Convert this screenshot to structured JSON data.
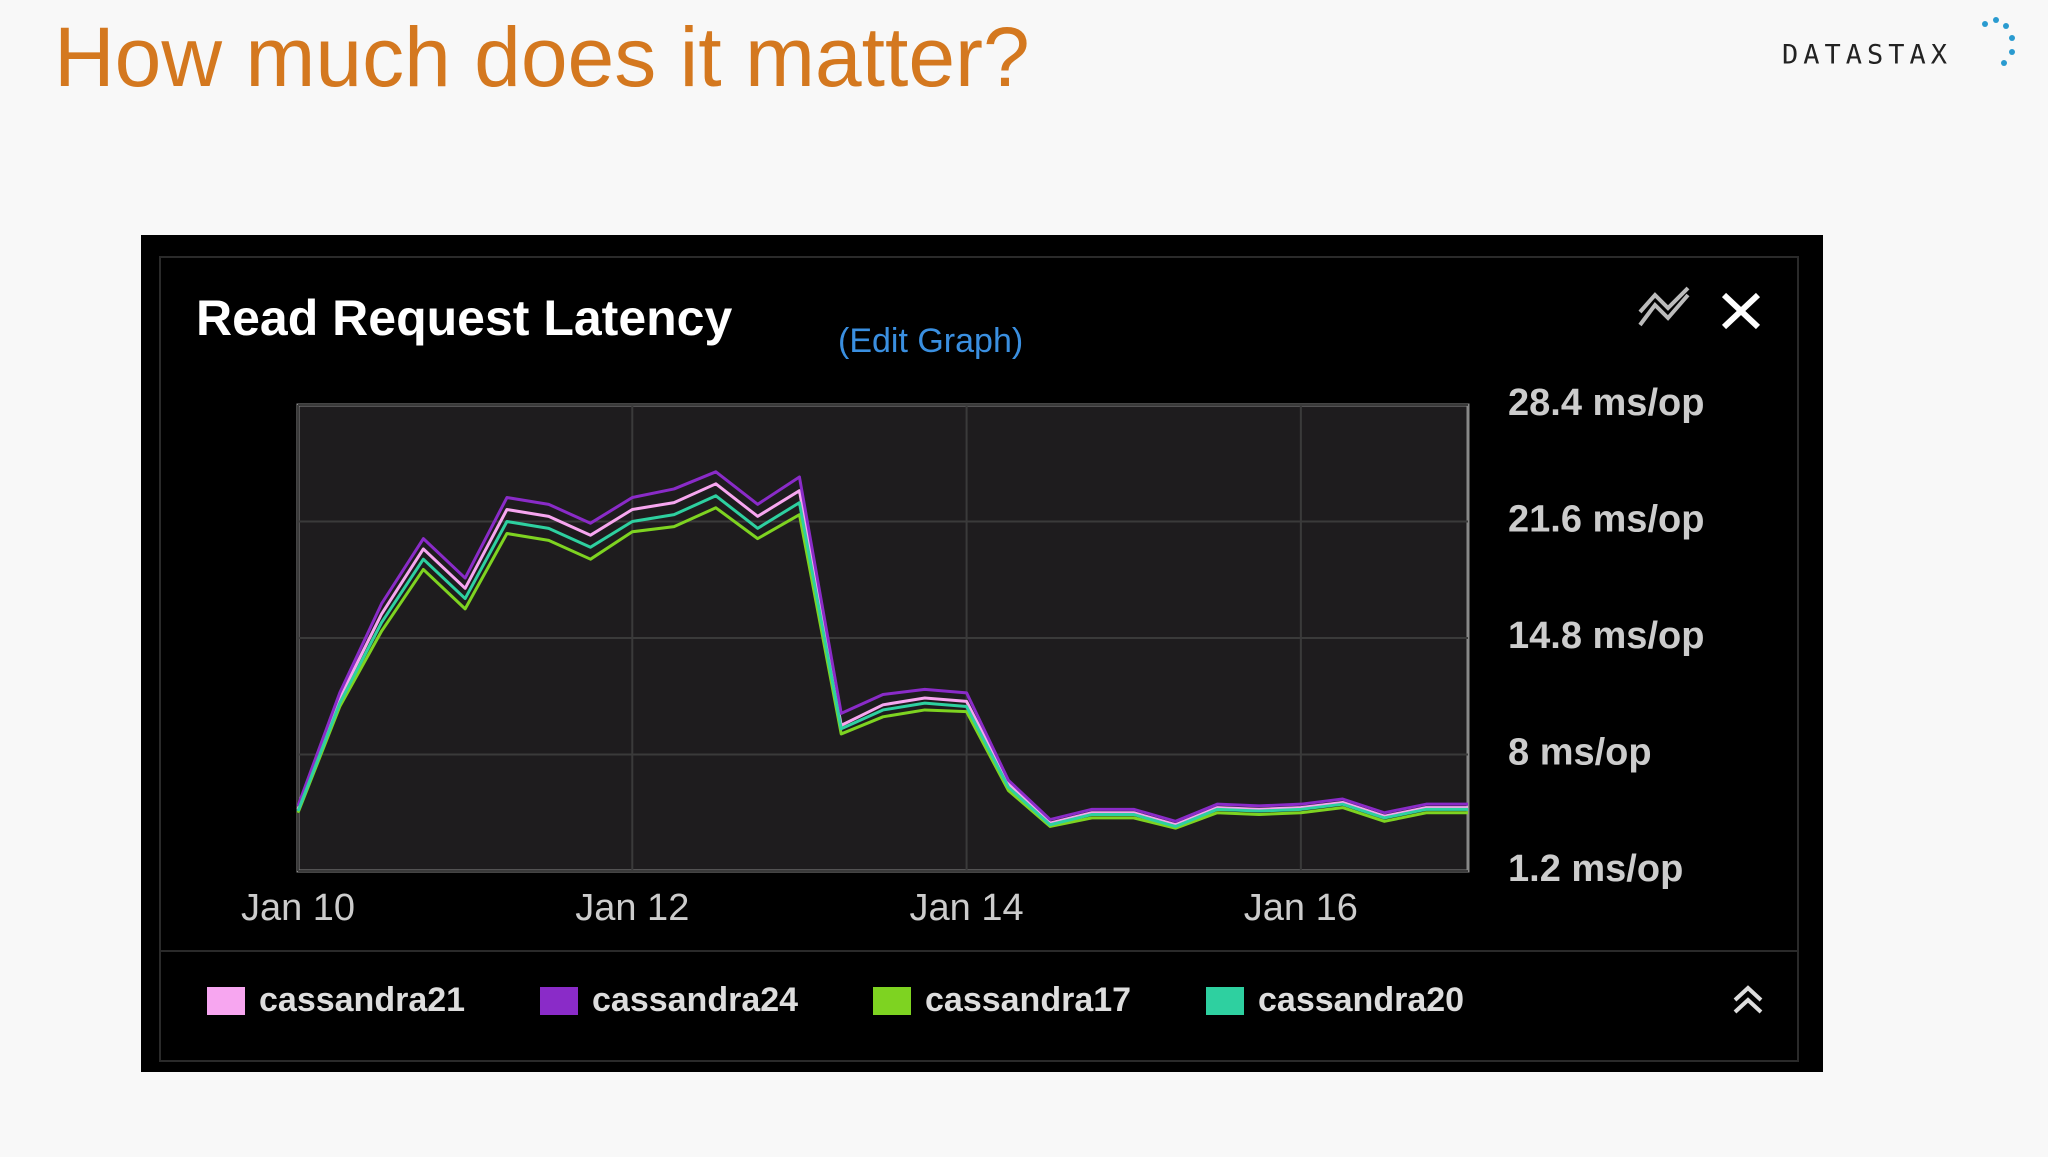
{
  "slide": {
    "title": "How much does it matter?",
    "logo": "DATASTAX"
  },
  "panel": {
    "edit_link": "(Edit Graph)"
  },
  "chart_data": {
    "type": "line",
    "title": "Read Request Latency",
    "x": [
      10,
      10.25,
      10.5,
      10.75,
      11,
      11.25,
      11.5,
      11.75,
      12,
      12.25,
      12.5,
      12.75,
      13,
      13.25,
      13.5,
      13.75,
      14,
      14.25,
      14.5,
      14.75,
      15,
      15.25,
      15.5,
      15.75,
      16,
      16.25,
      16.5,
      16.75,
      17
    ],
    "series": [
      {
        "name": "cassandra21",
        "color": "#f7a6f0",
        "values": [
          4.8,
          11.3,
          16.2,
          20.0,
          17.7,
          22.3,
          21.9,
          20.8,
          22.3,
          22.7,
          23.8,
          21.9,
          23.4,
          9.7,
          10.9,
          11.3,
          11.1,
          6.3,
          4.0,
          4.6,
          4.6,
          3.9,
          4.9,
          4.8,
          4.9,
          5.2,
          4.4,
          4.9,
          4.9
        ]
      },
      {
        "name": "cassandra24",
        "color": "#8a2bc8",
        "values": [
          5.0,
          11.6,
          16.8,
          20.6,
          18.3,
          23.0,
          22.6,
          21.5,
          23.0,
          23.5,
          24.5,
          22.6,
          24.2,
          10.4,
          11.5,
          11.8,
          11.6,
          6.5,
          4.2,
          4.8,
          4.8,
          4.1,
          5.1,
          5.0,
          5.1,
          5.4,
          4.6,
          5.1,
          5.1
        ]
      },
      {
        "name": "cassandra17",
        "color": "#7ed321",
        "values": [
          4.6,
          10.8,
          15.2,
          18.8,
          16.5,
          20.9,
          20.5,
          19.4,
          21.0,
          21.3,
          22.4,
          20.6,
          22.0,
          9.2,
          10.2,
          10.6,
          10.5,
          5.9,
          3.8,
          4.3,
          4.3,
          3.7,
          4.6,
          4.5,
          4.6,
          4.9,
          4.1,
          4.6,
          4.6
        ]
      },
      {
        "name": "cassandra20",
        "color": "#2ed0a0",
        "values": [
          4.7,
          11.0,
          15.7,
          19.4,
          17.1,
          21.6,
          21.2,
          20.1,
          21.6,
          22.0,
          23.1,
          21.2,
          22.7,
          9.5,
          10.6,
          11.0,
          10.8,
          6.1,
          3.9,
          4.5,
          4.5,
          3.8,
          4.8,
          4.7,
          4.8,
          5.1,
          4.3,
          4.8,
          4.8
        ]
      }
    ],
    "xlim": [
      10,
      17
    ],
    "xticks": [
      {
        "value": 10,
        "label": "Jan 10"
      },
      {
        "value": 12,
        "label": "Jan 12"
      },
      {
        "value": 14,
        "label": "Jan 14"
      },
      {
        "value": 16,
        "label": "Jan 16"
      }
    ],
    "ylim": [
      1.2,
      28.4
    ],
    "yticks": [
      {
        "value": 28.4,
        "label": "28.4 ms/op"
      },
      {
        "value": 21.6,
        "label": "21.6 ms/op"
      },
      {
        "value": 14.8,
        "label": "14.8 ms/op"
      },
      {
        "value": 8,
        "label": "8 ms/op"
      },
      {
        "value": 1.2,
        "label": "1.2 ms/op"
      }
    ],
    "grid": true
  }
}
